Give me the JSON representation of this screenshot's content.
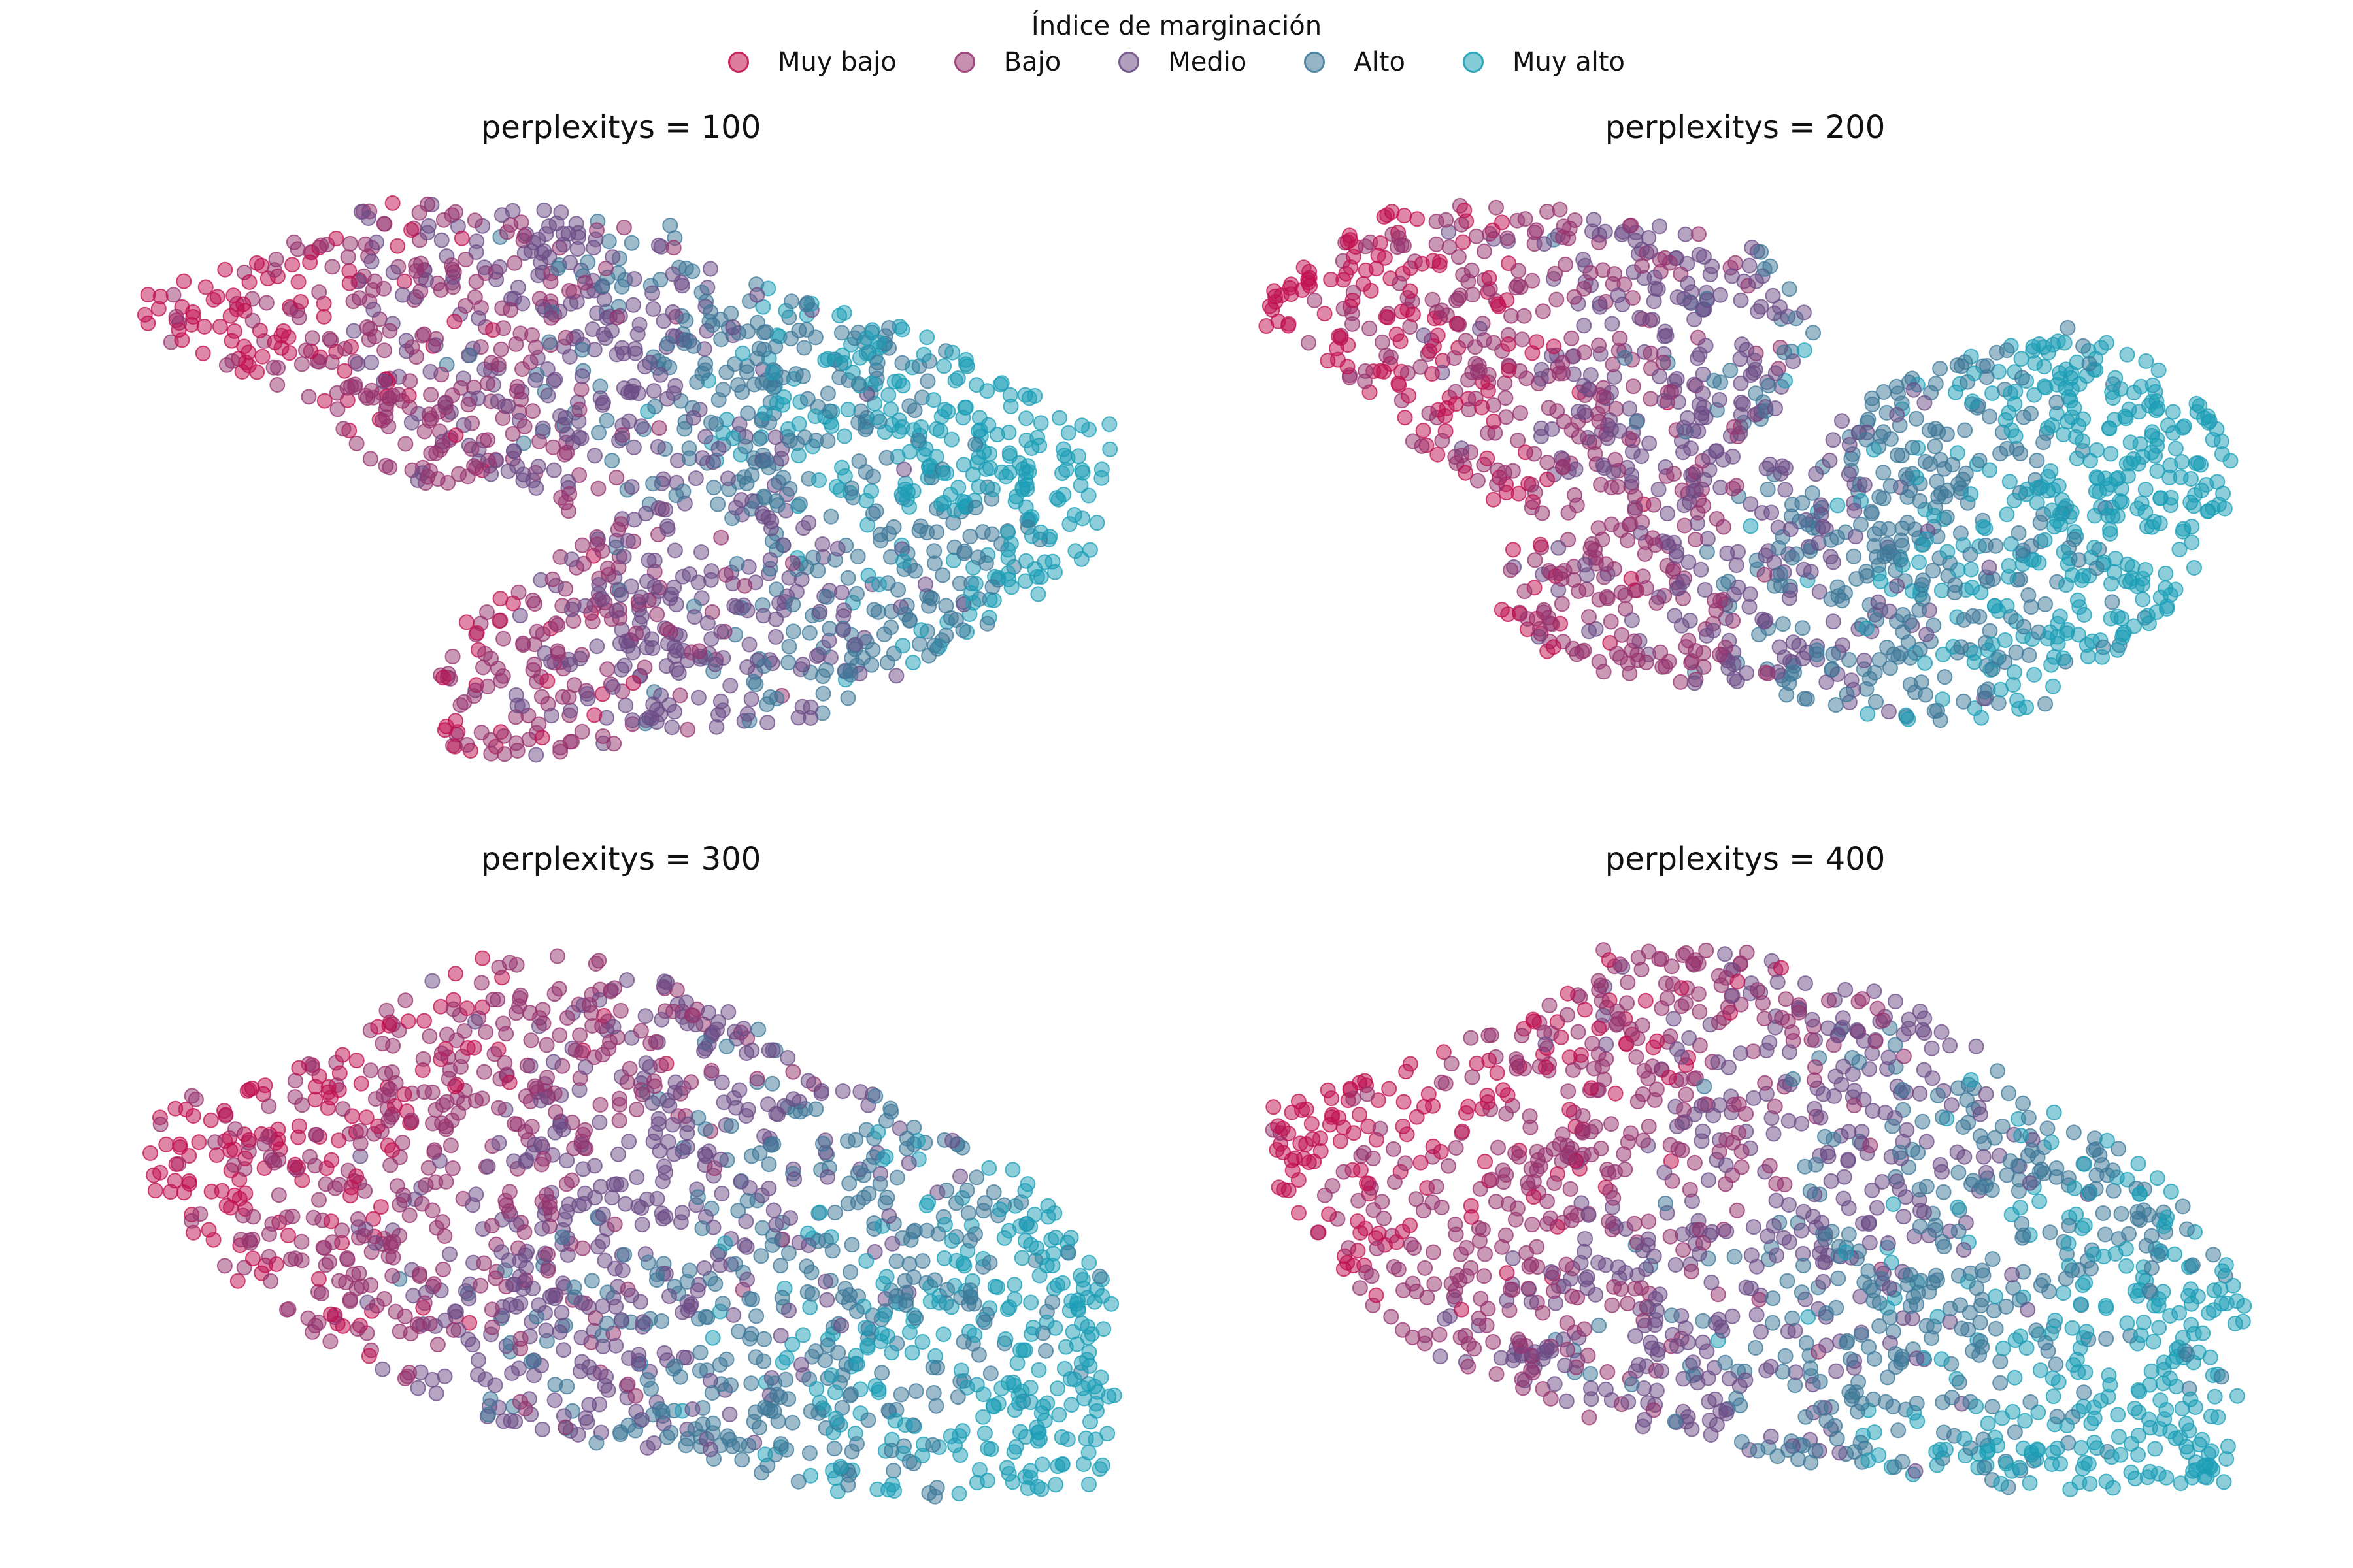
{
  "legend": {
    "title": "Índice de marginación",
    "items": [
      {
        "label": "Muy bajo",
        "color": "#c0104f"
      },
      {
        "label": "Bajo",
        "color": "#96336e"
      },
      {
        "label": "Medio",
        "color": "#6b4c85"
      },
      {
        "label": "Alto",
        "color": "#3d7898"
      },
      {
        "label": "Muy alto",
        "color": "#1b9eb6"
      }
    ]
  },
  "chart_data": [
    {
      "type": "scatter",
      "title": "perplexitys = 100",
      "axes": "off",
      "grid": false,
      "categories": [
        "Muy bajo",
        "Bajo",
        "Medio",
        "Alto",
        "Muy alto"
      ],
      "cluster_centers": [
        [
          0.14,
          0.27
        ],
        [
          0.3,
          0.33
        ],
        [
          0.45,
          0.44
        ],
        [
          0.66,
          0.52
        ],
        [
          0.9,
          0.57
        ],
        [
          0.48,
          0.86
        ],
        [
          0.65,
          0.81
        ],
        [
          0.8,
          0.78
        ]
      ]
    },
    {
      "type": "scatter",
      "title": "perplexitys = 200",
      "axes": "off",
      "grid": false,
      "categories": [
        "Muy bajo",
        "Bajo",
        "Medio",
        "Alto",
        "Muy alto"
      ],
      "cluster_centers": [
        [
          0.14,
          0.25
        ],
        [
          0.3,
          0.34
        ],
        [
          0.48,
          0.43
        ],
        [
          0.4,
          0.88
        ],
        [
          0.58,
          0.82
        ],
        [
          0.72,
          0.72
        ],
        [
          0.85,
          0.62
        ]
      ]
    },
    {
      "type": "scatter",
      "title": "perplexitys = 300",
      "axes": "off",
      "grid": false,
      "categories": [
        "Muy bajo",
        "Bajo",
        "Medio",
        "Alto",
        "Muy alto"
      ],
      "cluster_centers": [
        [
          0.12,
          0.4
        ],
        [
          0.38,
          0.22
        ],
        [
          0.52,
          0.4
        ],
        [
          0.7,
          0.55
        ],
        [
          0.85,
          0.75
        ],
        [
          0.92,
          0.95
        ]
      ]
    },
    {
      "type": "scatter",
      "title": "perplexitys = 400",
      "axes": "off",
      "grid": false,
      "categories": [
        "Muy bajo",
        "Bajo",
        "Medio",
        "Alto",
        "Muy alto"
      ],
      "cluster_centers": [
        [
          0.12,
          0.38
        ],
        [
          0.4,
          0.2
        ],
        [
          0.55,
          0.42
        ],
        [
          0.72,
          0.58
        ],
        [
          0.88,
          0.78
        ],
        [
          0.95,
          0.95
        ]
      ]
    }
  ]
}
